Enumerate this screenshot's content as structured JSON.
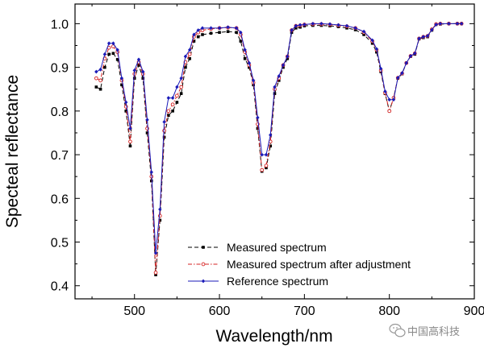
{
  "chart_data": {
    "type": "line",
    "xlabel": "Wavelength/nm",
    "ylabel": "Specteal reflectance",
    "xlim": [
      430,
      900
    ],
    "ylim": [
      0.37,
      1.045
    ],
    "xticks": [
      500,
      600,
      700,
      800,
      900
    ],
    "yticks": [
      0.4,
      0.5,
      0.6,
      0.7,
      0.8,
      0.9,
      1.0
    ],
    "ytick_labels": [
      "0.4",
      "0.5",
      "0.6",
      "0.7",
      "0.8",
      "0.9",
      "1.0"
    ],
    "xtick_labels": [
      "500",
      "600",
      "700",
      "800",
      "900"
    ],
    "legend_position": "bottom-center",
    "series": [
      {
        "name": "Measured spectrum",
        "color": "#000000",
        "dash": "dash",
        "marker": "square",
        "x": [
          455,
          460,
          465,
          470,
          475,
          480,
          485,
          490,
          495,
          500,
          505,
          510,
          515,
          520,
          525,
          530,
          535,
          540,
          545,
          550,
          555,
          560,
          565,
          570,
          575,
          580,
          590,
          600,
          610,
          620,
          625,
          630,
          635,
          640,
          645,
          650,
          655,
          660,
          665,
          670,
          675,
          680,
          685,
          690,
          695,
          700,
          710,
          720,
          730,
          740,
          750,
          760,
          770,
          780,
          785,
          790,
          795,
          800,
          805,
          810,
          815,
          820,
          825,
          830,
          835,
          840,
          845,
          850,
          855,
          860,
          870,
          880,
          885
        ],
        "y": [
          0.855,
          0.85,
          0.9,
          0.93,
          0.932,
          0.918,
          0.86,
          0.8,
          0.72,
          0.875,
          0.905,
          0.875,
          0.75,
          0.64,
          0.425,
          0.55,
          0.74,
          0.79,
          0.8,
          0.82,
          0.84,
          0.9,
          0.92,
          0.96,
          0.97,
          0.975,
          0.978,
          0.98,
          0.982,
          0.98,
          0.96,
          0.92,
          0.9,
          0.86,
          0.76,
          0.662,
          0.67,
          0.72,
          0.84,
          0.87,
          0.9,
          0.92,
          0.98,
          0.99,
          0.992,
          0.995,
          0.996,
          0.996,
          0.995,
          0.993,
          0.99,
          0.986,
          0.975,
          0.955,
          0.935,
          0.89,
          0.84,
          0.8,
          0.83,
          0.875,
          0.885,
          0.91,
          0.925,
          0.93,
          0.965,
          0.968,
          0.97,
          0.985,
          0.998,
          0.999,
          1.0,
          1.0,
          1.0
        ]
      },
      {
        "name": "Measured spectrum after adjustment",
        "color": "#d62020",
        "dash": "dashdot",
        "marker": "circle",
        "x": [
          455,
          460,
          465,
          470,
          475,
          480,
          485,
          490,
          495,
          500,
          505,
          510,
          515,
          520,
          525,
          530,
          535,
          540,
          545,
          550,
          555,
          560,
          565,
          570,
          575,
          580,
          590,
          600,
          610,
          620,
          625,
          630,
          635,
          640,
          645,
          650,
          655,
          660,
          665,
          670,
          675,
          680,
          685,
          690,
          695,
          700,
          710,
          720,
          730,
          740,
          750,
          760,
          770,
          780,
          785,
          790,
          795,
          800,
          805,
          810,
          815,
          820,
          825,
          830,
          835,
          840,
          845,
          850,
          855,
          860,
          870,
          880,
          885
        ],
        "y": [
          0.875,
          0.87,
          0.92,
          0.945,
          0.948,
          0.935,
          0.87,
          0.81,
          0.73,
          0.885,
          0.912,
          0.885,
          0.76,
          0.65,
          0.43,
          0.56,
          0.755,
          0.8,
          0.815,
          0.835,
          0.855,
          0.912,
          0.93,
          0.97,
          0.98,
          0.985,
          0.988,
          0.99,
          0.991,
          0.99,
          0.975,
          0.935,
          0.905,
          0.865,
          0.77,
          0.665,
          0.675,
          0.73,
          0.85,
          0.875,
          0.905,
          0.925,
          0.985,
          0.995,
          0.996,
          0.998,
          0.999,
          0.999,
          0.998,
          0.996,
          0.994,
          0.99,
          0.98,
          0.96,
          0.94,
          0.893,
          0.842,
          0.8,
          0.83,
          0.876,
          0.886,
          0.91,
          0.926,
          0.932,
          0.966,
          0.97,
          0.972,
          0.987,
          0.999,
          1.0,
          1.0,
          1.0,
          1.0
        ]
      },
      {
        "name": "Reference spectrum",
        "color": "#1a1ab8",
        "dash": "solid",
        "marker": "diamond",
        "x": [
          455,
          460,
          465,
          470,
          475,
          480,
          485,
          490,
          495,
          500,
          505,
          510,
          515,
          520,
          525,
          530,
          535,
          540,
          545,
          550,
          555,
          560,
          565,
          570,
          575,
          580,
          590,
          600,
          610,
          620,
          625,
          630,
          635,
          640,
          645,
          650,
          655,
          660,
          665,
          670,
          675,
          680,
          685,
          690,
          695,
          700,
          710,
          720,
          730,
          740,
          750,
          760,
          770,
          780,
          785,
          790,
          795,
          800,
          805,
          810,
          815,
          820,
          825,
          830,
          835,
          840,
          845,
          850,
          855,
          860,
          870,
          880,
          885
        ],
        "y": [
          0.89,
          0.895,
          0.93,
          0.955,
          0.955,
          0.94,
          0.875,
          0.82,
          0.76,
          0.893,
          0.918,
          0.89,
          0.78,
          0.66,
          0.475,
          0.575,
          0.775,
          0.83,
          0.83,
          0.855,
          0.875,
          0.925,
          0.94,
          0.975,
          0.985,
          0.99,
          0.99,
          0.99,
          0.992,
          0.99,
          0.98,
          0.94,
          0.91,
          0.87,
          0.785,
          0.7,
          0.7,
          0.745,
          0.855,
          0.88,
          0.905,
          0.925,
          0.985,
          0.995,
          0.997,
          0.998,
          1.0,
          1.0,
          0.999,
          0.997,
          0.995,
          0.99,
          0.982,
          0.962,
          0.942,
          0.897,
          0.845,
          0.826,
          0.826,
          0.876,
          0.887,
          0.91,
          0.926,
          0.932,
          0.966,
          0.97,
          0.972,
          0.986,
          0.998,
          1.0,
          1.0,
          1.0,
          1.0
        ]
      }
    ]
  },
  "watermark": {
    "icon": "wechat-icon",
    "text": "中国高科技"
  }
}
